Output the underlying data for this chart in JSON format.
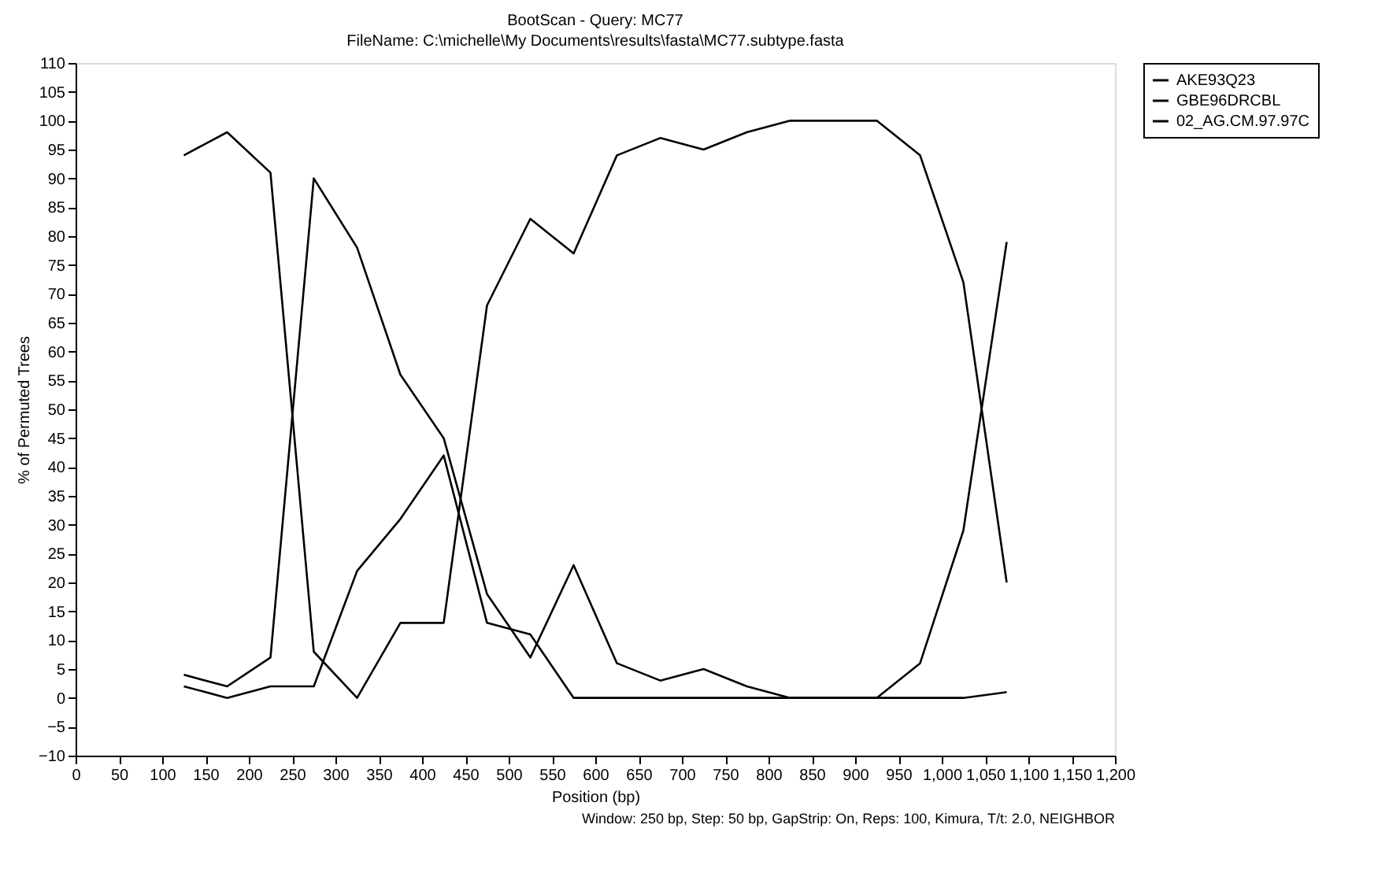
{
  "chart_data": {
    "type": "line",
    "title": "BootScan - Query: MC77",
    "subtitle": "FileName: C:\\michelle\\My Documents\\results\\fasta\\MC77.subtype.fasta",
    "xlabel": "Position (bp)",
    "ylabel": "% of Permuted Trees",
    "x": [
      125,
      175,
      225,
      275,
      325,
      375,
      425,
      475,
      525,
      575,
      625,
      675,
      725,
      775,
      825,
      875,
      925,
      975,
      1025,
      1075
    ],
    "series": [
      {
        "name": "AKE93Q23",
        "color": "#000000",
        "values": [
          94,
          98,
          91,
          8,
          0,
          13,
          13,
          68,
          83,
          77,
          94,
          97,
          95,
          98,
          100,
          100,
          100,
          94,
          72,
          20
        ]
      },
      {
        "name": "GBE96DRCBL",
        "color": "#000000",
        "values": [
          4,
          2,
          7,
          90,
          78,
          56,
          45,
          18,
          7,
          23,
          6,
          3,
          5,
          2,
          0,
          0,
          0,
          6,
          29,
          79
        ]
      },
      {
        "name": "02_AG.CM.97.97C",
        "color": "#000000",
        "values": [
          2,
          0,
          2,
          2,
          22,
          31,
          42,
          13,
          11,
          0,
          0,
          0,
          0,
          0,
          0,
          0,
          0,
          0,
          0,
          1
        ]
      }
    ],
    "xlim": [
      0,
      1200
    ],
    "xticks": [
      0,
      50,
      100,
      150,
      200,
      250,
      300,
      350,
      400,
      450,
      500,
      550,
      600,
      650,
      700,
      750,
      800,
      850,
      900,
      950,
      {
        "value": 1000,
        "label": "1,000"
      },
      {
        "value": 1050,
        "label": "1,050"
      },
      {
        "value": 1100,
        "label": "1,100"
      },
      {
        "value": 1150,
        "label": "1,150"
      },
      {
        "value": 1200,
        "label": "1,200"
      }
    ],
    "ylim": [
      -10,
      110
    ],
    "yticks": [
      -10,
      -5,
      0,
      5,
      10,
      15,
      20,
      25,
      30,
      35,
      40,
      45,
      50,
      55,
      60,
      65,
      70,
      75,
      80,
      85,
      90,
      95,
      100,
      105,
      110
    ],
    "grid": false,
    "legend": "top right",
    "marker": "none",
    "line_style": "solid",
    "annotations": [
      "Window: 250 bp, Step: 50 bp, GapStrip: On, Reps: 100, Kimura, T/t: 2.0, NEIGHBOR"
    ]
  }
}
